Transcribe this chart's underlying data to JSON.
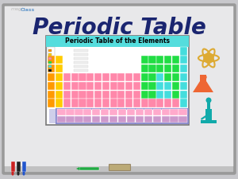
{
  "bg_color": "#c8c8cc",
  "board_color": "#e8e8ea",
  "board_border": "#999999",
  "title_text": "Periodic Table",
  "title_color": "#1a2570",
  "title_fontsize": 20,
  "pt_header": "Periodic Table of the Elements",
  "pt_header_bg": "#55dddd",
  "pt_box_bg": "#ffffff",
  "pt_box_border": "#aaaaaa",
  "atom_color": "#ddaa33",
  "flask_color": "#ee6633",
  "scope_color": "#11aaaa",
  "eraser_color": "#bbaa77",
  "pen_color": "#22aa44",
  "cell_orange": "#ff9900",
  "cell_yellow": "#ffcc00",
  "cell_pink": "#ff88aa",
  "cell_green": "#22dd44",
  "cell_cyan": "#44dddd",
  "cell_blue_border": "#8888cc",
  "cell_lant": "#ffaacc",
  "cell_act": "#cc99cc",
  "cell_white": "#ffffff",
  "cell_gray": "#bbbbbb",
  "marker_red": "#cc2222",
  "marker_black": "#222222",
  "marker_blue": "#2255cc"
}
